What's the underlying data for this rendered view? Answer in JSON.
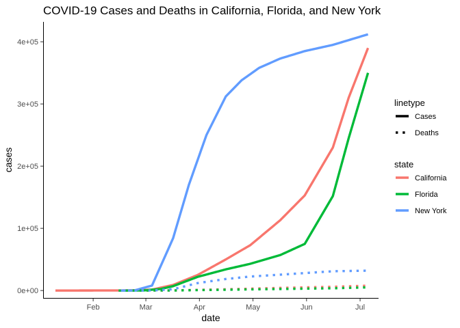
{
  "chart_data": {
    "type": "line",
    "title": "COVID-19 Cases and Deaths in California, Florida, and New York",
    "xlabel": "date",
    "ylabel": "cases",
    "x_ticks": [
      "Feb",
      "Mar",
      "Apr",
      "May",
      "Jun",
      "Jul"
    ],
    "y_ticks": [
      {
        "value": 0,
        "label": "0e+00"
      },
      {
        "value": 100000,
        "label": "1e+05"
      },
      {
        "value": 200000,
        "label": "2e+05"
      },
      {
        "value": 300000,
        "label": "3e+05"
      },
      {
        "value": 400000,
        "label": "4e+05"
      }
    ],
    "x_range": [
      "2020-01-18",
      "2020-07-27"
    ],
    "ylim": [
      -13000,
      432000
    ],
    "grid": false,
    "legends": [
      {
        "title": "linetype",
        "entries": [
          {
            "label": "Cases",
            "linetype": "solid"
          },
          {
            "label": "Deaths",
            "linetype": "dotted"
          }
        ]
      },
      {
        "title": "state",
        "entries": [
          {
            "label": "California",
            "color": "#F8766D"
          },
          {
            "label": "Florida",
            "color": "#00BA38"
          },
          {
            "label": "New York",
            "color": "#619CFF"
          }
        ]
      }
    ],
    "series": [
      {
        "state": "California",
        "linetype": "Cases",
        "color": "#F8766D",
        "points": [
          [
            "2020-01-25",
            0
          ],
          [
            "2020-03-01",
            100
          ],
          [
            "2020-03-10",
            400
          ],
          [
            "2020-03-20",
            1500
          ],
          [
            "2020-04-01",
            9000
          ],
          [
            "2020-04-15",
            25000
          ],
          [
            "2020-05-01",
            50000
          ],
          [
            "2020-05-15",
            73000
          ],
          [
            "2020-06-01",
            113000
          ],
          [
            "2020-06-15",
            153000
          ],
          [
            "2020-07-01",
            230000
          ],
          [
            "2020-07-10",
            310000
          ],
          [
            "2020-07-21",
            390000
          ]
        ]
      },
      {
        "state": "Florida",
        "linetype": "Cases",
        "color": "#00BA38",
        "points": [
          [
            "2020-03-01",
            0
          ],
          [
            "2020-03-15",
            100
          ],
          [
            "2020-03-25",
            2500
          ],
          [
            "2020-04-01",
            7000
          ],
          [
            "2020-04-15",
            22000
          ],
          [
            "2020-05-01",
            34000
          ],
          [
            "2020-05-15",
            43000
          ],
          [
            "2020-06-01",
            57000
          ],
          [
            "2020-06-15",
            75000
          ],
          [
            "2020-07-01",
            152000
          ],
          [
            "2020-07-10",
            245000
          ],
          [
            "2020-07-21",
            350000
          ]
        ]
      },
      {
        "state": "New York",
        "linetype": "Cases",
        "color": "#619CFF",
        "points": [
          [
            "2020-03-01",
            0
          ],
          [
            "2020-03-10",
            170
          ],
          [
            "2020-03-20",
            8000
          ],
          [
            "2020-04-01",
            84000
          ],
          [
            "2020-04-10",
            170000
          ],
          [
            "2020-04-20",
            250000
          ],
          [
            "2020-05-01",
            312000
          ],
          [
            "2020-05-10",
            338000
          ],
          [
            "2020-05-20",
            358000
          ],
          [
            "2020-06-01",
            373000
          ],
          [
            "2020-06-15",
            385000
          ],
          [
            "2020-07-01",
            395000
          ],
          [
            "2020-07-21",
            412000
          ]
        ]
      },
      {
        "state": "California",
        "linetype": "Deaths",
        "color": "#F8766D",
        "points": [
          [
            "2020-03-01",
            0
          ],
          [
            "2020-04-01",
            200
          ],
          [
            "2020-05-01",
            2000
          ],
          [
            "2020-06-01",
            4200
          ],
          [
            "2020-07-01",
            6000
          ],
          [
            "2020-07-21",
            7800
          ]
        ]
      },
      {
        "state": "Florida",
        "linetype": "Deaths",
        "color": "#00BA38",
        "points": [
          [
            "2020-03-01",
            0
          ],
          [
            "2020-04-01",
            100
          ],
          [
            "2020-05-01",
            1300
          ],
          [
            "2020-06-01",
            2500
          ],
          [
            "2020-07-01",
            3600
          ],
          [
            "2020-07-21",
            5100
          ]
        ]
      },
      {
        "state": "New York",
        "linetype": "Deaths",
        "color": "#619CFF",
        "points": [
          [
            "2020-03-10",
            0
          ],
          [
            "2020-03-20",
            100
          ],
          [
            "2020-04-01",
            2000
          ],
          [
            "2020-04-15",
            12000
          ],
          [
            "2020-05-01",
            18500
          ],
          [
            "2020-05-15",
            22500
          ],
          [
            "2020-06-01",
            25500
          ],
          [
            "2020-07-01",
            31000
          ],
          [
            "2020-07-21",
            32000
          ]
        ]
      }
    ]
  }
}
